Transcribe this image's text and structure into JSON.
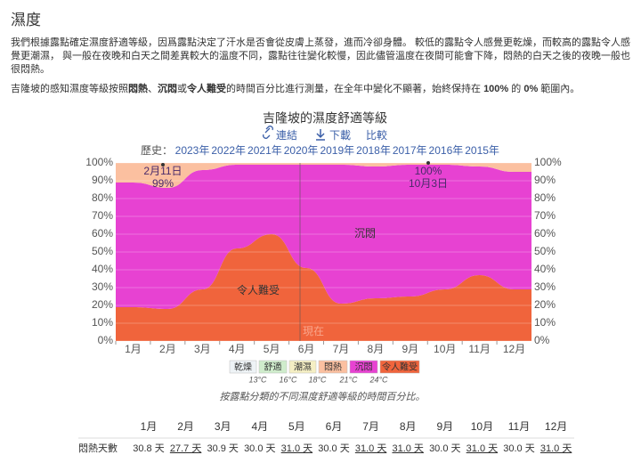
{
  "heading": "濕度",
  "paragraphs": [
    "我們根據露點確定濕度舒適等級，因爲露點決定了汗水是否會從皮膚上蒸發，進而冷卻身體。 較低的露點令人感覺更乾燥，而較高的露點令人感覺更潮濕， 與一般在夜晚和白天之間差異較大的溫度不同，露點往往變化較慢，因此儘管溫度在夜間可能會下降，悶熱的白天之後的夜晚一般也很悶熱。",
    [
      "吉隆坡的感知濕度等級按照",
      "悶熱",
      "、",
      "沉悶",
      "或",
      "令人難受",
      "的時間百分比進行測量，在全年中變化不顯著，始終保持在 ",
      "100%",
      " 的 ",
      "0%",
      " 範圍內。"
    ]
  ],
  "chart_data": {
    "type": "area",
    "title": "吉隆坡的濕度舒適等級",
    "links": [
      "連結",
      "下載",
      "比較"
    ],
    "history_label": "歷史：",
    "history": [
      "2023年",
      "2022年",
      "2021年",
      "2020年",
      "2019年",
      "2018年",
      "2017年",
      "2016年",
      "2015年"
    ],
    "categories": [
      "1月",
      "2月",
      "3月",
      "4月",
      "5月",
      "6月",
      "7月",
      "8月",
      "9月",
      "10月",
      "11月",
      "12月"
    ],
    "series": [
      {
        "name": "令人難受",
        "color": "#f0643c",
        "values": [
          19,
          18,
          29,
          52,
          60,
          41,
          21,
          24,
          25,
          29,
          37,
          29
        ]
      },
      {
        "name": "沉悶",
        "color": "#e742d2",
        "values": [
          70,
          68,
          67,
          47,
          39,
          58,
          78,
          74,
          74,
          70,
          61,
          66
        ]
      },
      {
        "name": "悶熱",
        "color": "#fbc0a0",
        "values": [
          11,
          14,
          4,
          1,
          1,
          1,
          1,
          2,
          1,
          1,
          2,
          5
        ]
      }
    ],
    "ylim": [
      0,
      100
    ],
    "yticks": [
      {
        "value": 0,
        "label": "0%"
      },
      {
        "value": 10,
        "label": "10%"
      },
      {
        "value": 20,
        "label": "20%"
      },
      {
        "value": 30,
        "label": "30%"
      },
      {
        "value": 40,
        "label": "40%"
      },
      {
        "value": 50,
        "label": "50%"
      },
      {
        "value": 60,
        "label": "60%"
      },
      {
        "value": 70,
        "label": "70%"
      },
      {
        "value": 80,
        "label": "80%"
      },
      {
        "value": 90,
        "label": "90%"
      },
      {
        "value": 100,
        "label": "100%"
      }
    ],
    "grid": true,
    "annotations": [
      [
        "2月11日",
        "99%"
      ],
      [
        "100%",
        "10月3日"
      ]
    ],
    "now_label": "現在",
    "legend_levels": [
      {
        "name": "乾燥",
        "color": "#eef3f6"
      },
      {
        "name": "舒適",
        "color": "#cfeccc"
      },
      {
        "name": "潮濕",
        "color": "#f5efc4"
      },
      {
        "name": "悶熱",
        "color": "#fbc0a0"
      },
      {
        "name": "沉悶",
        "color": "#e742d2"
      },
      {
        "name": "令人難受",
        "color": "#f0643c"
      }
    ],
    "legend_thresholds": [
      {
        "value": 13,
        "label": "13°C"
      },
      {
        "value": 16,
        "label": "16°C"
      },
      {
        "value": 18,
        "label": "18°C"
      },
      {
        "value": 21,
        "label": "21°C"
      },
      {
        "value": 24,
        "label": "24°C"
      }
    ],
    "caption": "按露點分類的不同濕度舒適等級的時間百分比。"
  },
  "table": {
    "header": [
      "1月",
      "2月",
      "3月",
      "4月",
      "5月",
      "6月",
      "7月",
      "8月",
      "9月",
      "10月",
      "11月",
      "12月"
    ],
    "row_label": "悶熱天數",
    "row": [
      "30.8 天",
      "27.7 天",
      "30.9 天",
      "30.0 天",
      "31.0 天",
      "30.0 天",
      "31.0 天",
      "31.0 天",
      "30.0 天",
      "31.0 天",
      "30.0 天",
      "31.0 天"
    ]
  }
}
